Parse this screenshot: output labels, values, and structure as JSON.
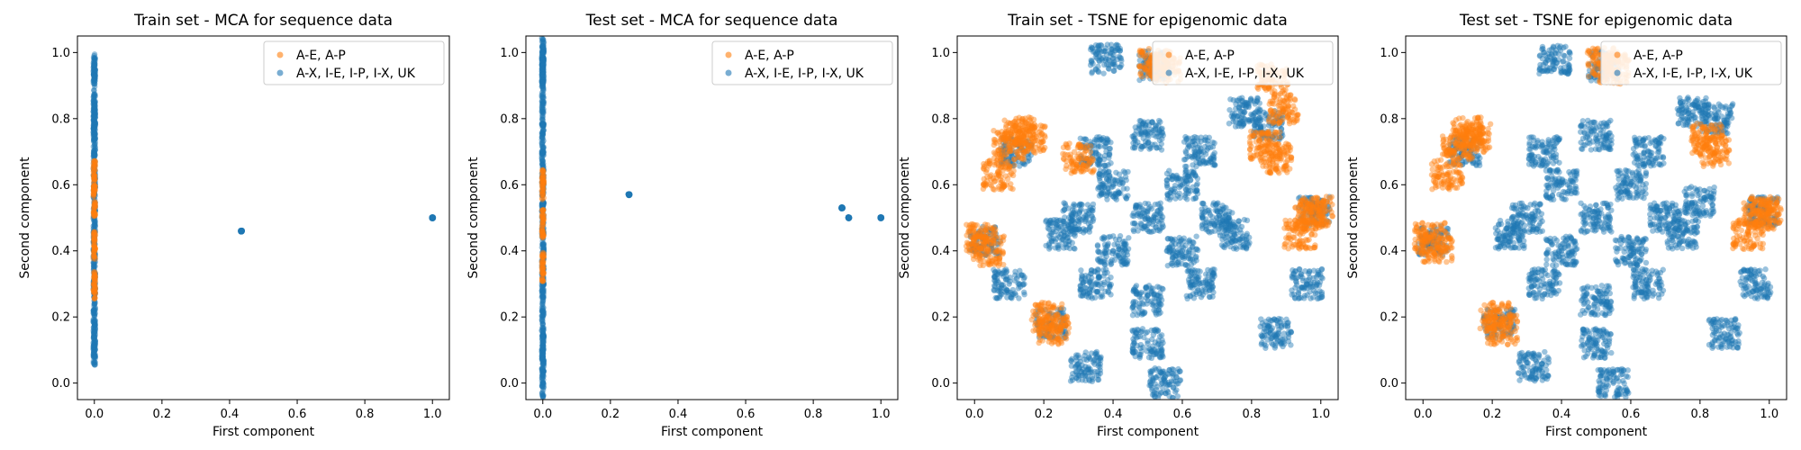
{
  "colors": {
    "positive": "#ff7f0e",
    "negative": "#1f77b4"
  },
  "chart_data": [
    {
      "type": "scatter",
      "title": "Train set - MCA for sequence data",
      "xlabel": "First component",
      "ylabel": "Second component",
      "xlim": [
        -0.05,
        1.05
      ],
      "ylim": [
        -0.05,
        1.05
      ],
      "xticks": [
        "0.0",
        "0.2",
        "0.4",
        "0.6",
        "0.8",
        "1.0"
      ],
      "yticks": [
        "0.0",
        "0.2",
        "0.4",
        "0.6",
        "0.8",
        "1.0"
      ],
      "grid": false,
      "legend_position": "top-right",
      "series": [
        {
          "name": "A-E, A-P",
          "color": "#ff7f0e",
          "points": [
            [
              0.0,
              0.3
            ],
            [
              0.0,
              0.42
            ],
            [
              0.0,
              0.55
            ],
            [
              0.0,
              0.63
            ]
          ]
        },
        {
          "name": "A-X, I-E, I-P, I-X, UK",
          "color": "#1f77b4",
          "points": [
            [
              0.0,
              0.95
            ],
            [
              0.0,
              0.93
            ],
            [
              0.0,
              0.83
            ],
            [
              0.0,
              0.81
            ],
            [
              0.0,
              0.79
            ],
            [
              0.0,
              0.74
            ],
            [
              0.0,
              0.66
            ],
            [
              0.0,
              0.58
            ],
            [
              0.0,
              0.5
            ],
            [
              0.0,
              0.42
            ],
            [
              0.0,
              0.34
            ],
            [
              0.0,
              0.26
            ],
            [
              0.0,
              0.18
            ],
            [
              0.0,
              0.12
            ],
            [
              0.0,
              0.1
            ],
            [
              0.435,
              0.46
            ],
            [
              1.0,
              0.5
            ]
          ]
        }
      ]
    },
    {
      "type": "scatter",
      "title": "Test set - MCA for sequence data",
      "xlabel": "First component",
      "ylabel": "Second component",
      "xlim": [
        -0.05,
        1.05
      ],
      "ylim": [
        -0.05,
        1.05
      ],
      "xticks": [
        "0.0",
        "0.2",
        "0.4",
        "0.6",
        "0.8",
        "1.0"
      ],
      "yticks": [
        "0.0",
        "0.2",
        "0.4",
        "0.6",
        "0.8",
        "1.0"
      ],
      "grid": false,
      "legend_position": "top-right",
      "series": [
        {
          "name": "A-E, A-P",
          "color": "#ff7f0e",
          "points": [
            [
              0.0,
              0.35
            ],
            [
              0.0,
              0.48
            ],
            [
              0.0,
              0.6
            ]
          ]
        },
        {
          "name": "A-X, I-E, I-P, I-X, UK",
          "color": "#1f77b4",
          "points": [
            [
              0.0,
              1.0
            ],
            [
              0.0,
              0.98
            ],
            [
              0.0,
              0.95
            ],
            [
              0.0,
              0.9
            ],
            [
              0.0,
              0.82
            ],
            [
              0.0,
              0.74
            ],
            [
              0.0,
              0.66
            ],
            [
              0.0,
              0.58
            ],
            [
              0.0,
              0.5
            ],
            [
              0.0,
              0.42
            ],
            [
              0.0,
              0.34
            ],
            [
              0.0,
              0.26
            ],
            [
              0.0,
              0.18
            ],
            [
              0.0,
              0.1
            ],
            [
              0.0,
              0.08
            ],
            [
              0.0,
              0.0
            ],
            [
              0.255,
              0.57
            ],
            [
              0.885,
              0.53
            ],
            [
              0.905,
              0.5
            ],
            [
              1.0,
              0.5
            ]
          ]
        }
      ]
    },
    {
      "type": "scatter",
      "title": "Train set - TSNE for epigenomic data",
      "xlabel": "First component",
      "ylabel": "Second component",
      "xlim": [
        -0.05,
        1.05
      ],
      "ylim": [
        -0.05,
        1.05
      ],
      "xticks": [
        "0.0",
        "0.2",
        "0.4",
        "0.6",
        "0.8",
        "1.0"
      ],
      "yticks": [
        "0.0",
        "0.2",
        "0.4",
        "0.6",
        "0.8",
        "1.0"
      ],
      "grid": false,
      "legend_position": "top-right",
      "series": [
        {
          "name": "A-E, A-P",
          "color": "#ff7f0e",
          "points": [
            [
              0.1,
              0.72
            ],
            [
              0.13,
              0.76
            ],
            [
              0.07,
              0.63
            ],
            [
              0.16,
              0.74
            ],
            [
              0.52,
              0.97
            ],
            [
              0.55,
              0.95
            ],
            [
              0.86,
              0.92
            ],
            [
              0.89,
              0.83
            ],
            [
              0.84,
              0.72
            ],
            [
              0.87,
              0.68
            ],
            [
              0.02,
              0.44
            ],
            [
              0.04,
              0.4
            ],
            [
              0.21,
              0.2
            ],
            [
              0.23,
              0.16
            ],
            [
              0.97,
              0.51
            ],
            [
              0.94,
              0.45
            ],
            [
              0.99,
              0.52
            ],
            [
              0.3,
              0.68
            ]
          ]
        },
        {
          "name": "A-X, I-E, I-P, I-X, UK",
          "color": "#1f77b4",
          "points": [
            [
              0.5,
              0.5
            ],
            [
              0.4,
              0.6
            ],
            [
              0.6,
              0.6
            ],
            [
              0.4,
              0.4
            ],
            [
              0.6,
              0.4
            ],
            [
              0.5,
              0.75
            ],
            [
              0.5,
              0.25
            ],
            [
              0.3,
              0.5
            ],
            [
              0.7,
              0.5
            ],
            [
              0.35,
              0.7
            ],
            [
              0.65,
              0.7
            ],
            [
              0.35,
              0.3
            ],
            [
              0.65,
              0.3
            ],
            [
              0.5,
              0.12
            ],
            [
              0.25,
              0.45
            ],
            [
              0.75,
              0.45
            ],
            [
              0.12,
              0.7
            ],
            [
              0.85,
              0.78
            ],
            [
              0.03,
              0.43
            ],
            [
              0.22,
              0.18
            ],
            [
              0.52,
              0.96
            ],
            [
              0.98,
              0.52
            ],
            [
              0.38,
              0.98
            ],
            [
              0.32,
              0.05
            ],
            [
              0.55,
              0.0
            ],
            [
              0.87,
              0.15
            ],
            [
              0.96,
              0.3
            ],
            [
              0.1,
              0.3
            ],
            [
              0.78,
              0.82
            ]
          ]
        }
      ]
    },
    {
      "type": "scatter",
      "title": "Test set - TSNE for epigenomic data",
      "xlabel": "First component",
      "ylabel": "Second component",
      "xlim": [
        -0.05,
        1.05
      ],
      "ylim": [
        -0.05,
        1.05
      ],
      "xticks": [
        "0.0",
        "0.2",
        "0.4",
        "0.6",
        "0.8",
        "1.0"
      ],
      "yticks": [
        "0.0",
        "0.2",
        "0.4",
        "0.6",
        "0.8",
        "1.0"
      ],
      "grid": false,
      "legend_position": "top-right",
      "series": [
        {
          "name": "A-E, A-P",
          "color": "#ff7f0e",
          "points": [
            [
              0.1,
              0.72
            ],
            [
              0.13,
              0.76
            ],
            [
              0.07,
              0.63
            ],
            [
              0.15,
              0.74
            ],
            [
              0.52,
              0.97
            ],
            [
              0.55,
              0.95
            ],
            [
              0.82,
              0.74
            ],
            [
              0.84,
              0.7
            ],
            [
              0.02,
              0.44
            ],
            [
              0.04,
              0.41
            ],
            [
              0.21,
              0.2
            ],
            [
              0.23,
              0.16
            ],
            [
              0.97,
              0.51
            ],
            [
              0.94,
              0.45
            ],
            [
              0.99,
              0.52
            ]
          ]
        },
        {
          "name": "A-X, I-E, I-P, I-X, UK",
          "color": "#1f77b4",
          "points": [
            [
              0.5,
              0.5
            ],
            [
              0.4,
              0.6
            ],
            [
              0.6,
              0.6
            ],
            [
              0.4,
              0.4
            ],
            [
              0.6,
              0.4
            ],
            [
              0.5,
              0.75
            ],
            [
              0.5,
              0.25
            ],
            [
              0.3,
              0.5
            ],
            [
              0.7,
              0.5
            ],
            [
              0.35,
              0.7
            ],
            [
              0.65,
              0.7
            ],
            [
              0.35,
              0.3
            ],
            [
              0.65,
              0.3
            ],
            [
              0.5,
              0.12
            ],
            [
              0.25,
              0.45
            ],
            [
              0.75,
              0.45
            ],
            [
              0.12,
              0.7
            ],
            [
              0.85,
              0.8
            ],
            [
              0.03,
              0.43
            ],
            [
              0.22,
              0.18
            ],
            [
              0.52,
              0.96
            ],
            [
              0.98,
              0.52
            ],
            [
              0.38,
              0.98
            ],
            [
              0.32,
              0.05
            ],
            [
              0.55,
              0.0
            ],
            [
              0.87,
              0.15
            ],
            [
              0.96,
              0.3
            ],
            [
              0.78,
              0.82
            ],
            [
              0.8,
              0.55
            ]
          ]
        }
      ]
    }
  ]
}
